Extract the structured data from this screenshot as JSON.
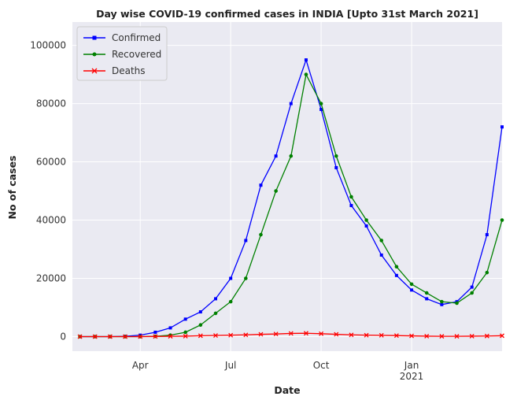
{
  "chart_data": {
    "type": "line",
    "title": "Day wise COVID-19 confirmed cases in INDIA [Upto 31st March 2021]",
    "x_label": "Date",
    "y_label": "No of cases",
    "x": [
      1,
      1.5,
      2,
      2.5,
      3,
      3.5,
      4,
      4.5,
      5,
      5.5,
      6,
      6.5,
      7,
      7.5,
      8,
      8.5,
      9,
      9.5,
      10,
      10.5,
      11,
      11.5,
      12,
      12.5,
      13,
      13.5,
      14,
      14.5,
      15
    ],
    "series": [
      {
        "name": "Confirmed",
        "color": "#0000ff",
        "marker": "square",
        "values": [
          0,
          0,
          0,
          100,
          500,
          1500,
          3000,
          6000,
          8500,
          13000,
          20000,
          33000,
          52000,
          62000,
          80000,
          95000,
          78000,
          58000,
          45000,
          38000,
          28000,
          21000,
          16000,
          13000,
          11000,
          12000,
          17000,
          35000,
          72000
        ]
      },
      {
        "name": "Recovered",
        "color": "#008000",
        "marker": "circle",
        "values": [
          0,
          0,
          0,
          0,
          0,
          100,
          500,
          1500,
          4000,
          8000,
          12000,
          20000,
          35000,
          50000,
          62000,
          90000,
          80000,
          62000,
          48000,
          40000,
          33000,
          24000,
          18000,
          15000,
          12000,
          11500,
          15000,
          22000,
          40000
        ]
      },
      {
        "name": "Deaths",
        "color": "#ff0000",
        "marker": "x",
        "values": [
          0,
          0,
          0,
          0,
          10,
          50,
          100,
          150,
          300,
          400,
          500,
          600,
          800,
          900,
          1100,
          1150,
          1000,
          800,
          600,
          500,
          450,
          350,
          250,
          150,
          100,
          100,
          150,
          200,
          300
        ]
      }
    ],
    "xlim": [
      0.75,
      15.0
    ],
    "xticks": [
      {
        "value": 3,
        "label": "Apr"
      },
      {
        "value": 6,
        "label": "Jul"
      },
      {
        "value": 9,
        "label": "Oct"
      },
      {
        "value": 12,
        "label": "Jan\n2021"
      }
    ],
    "ylim": [
      -5000,
      108000
    ],
    "yticks": [
      0,
      20000,
      40000,
      60000,
      80000,
      100000
    ],
    "grid": true,
    "legend": "upper left"
  }
}
